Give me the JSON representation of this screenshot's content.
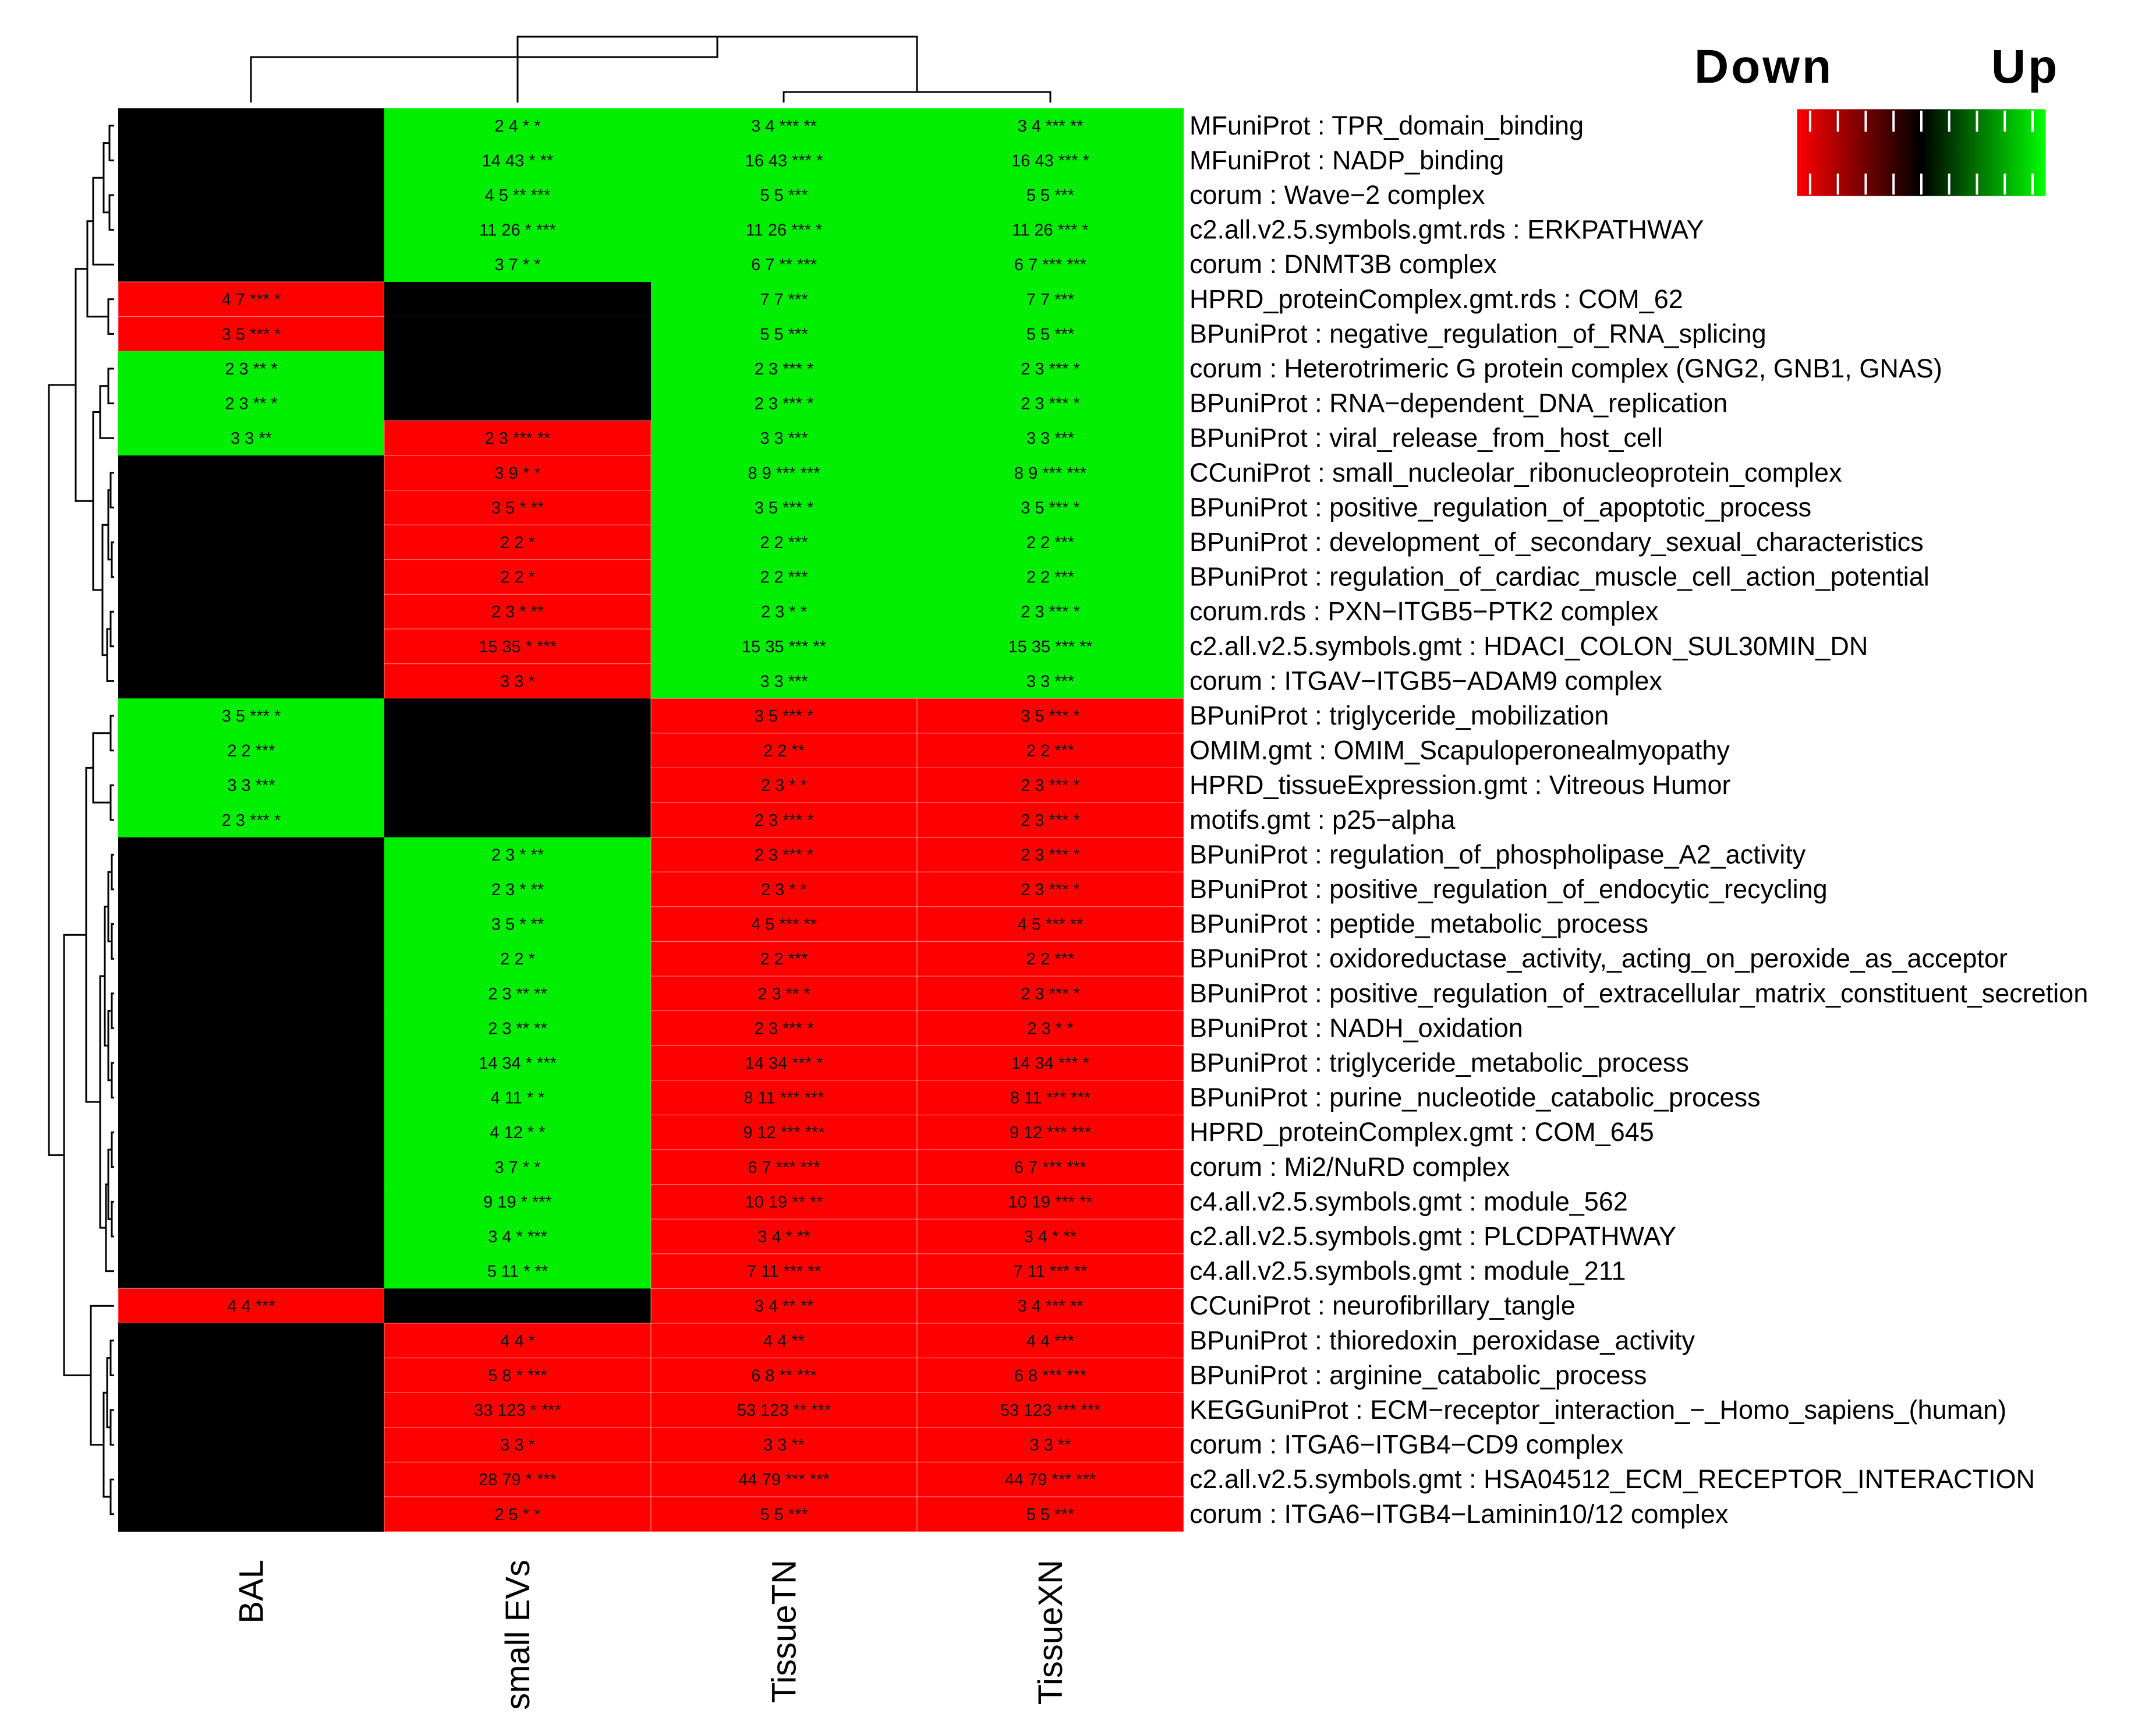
{
  "chart_data": {
    "type": "heatmap",
    "title": "",
    "columns": [
      "BAL",
      "small EVs",
      "TissueTN",
      "TissueXN"
    ],
    "rows": [
      "MFuniProt : TPR_domain_binding",
      "MFuniProt : NADP_binding",
      "corum      : Wave−2 complex",
      "c2.all.v2.5.symbols.gmt.rds : ERKPATHWAY",
      "corum      : DNMT3B complex",
      "HPRD_proteinComplex.gmt.rds : COM_62",
      "BPuniProt : negative_regulation_of_RNA_splicing",
      "corum      : Heterotrimeric G protein complex (GNG2, GNB1, GNAS)",
      "BPuniProt : RNA−dependent_DNA_replication",
      "BPuniProt : viral_release_from_host_cell",
      "CCuniProt : small_nucleolar_ribonucleoprotein_complex",
      "BPuniProt : positive_regulation_of_apoptotic_process",
      "BPuniProt : development_of_secondary_sexual_characteristics",
      "BPuniProt : regulation_of_cardiac_muscle_cell_action_potential",
      "corum.rds : PXN−ITGB5−PTK2 complex",
      "c2.all.v2.5.symbols.gmt       : HDACI_COLON_SUL30MIN_DN",
      "corum      : ITGAV−ITGB5−ADAM9 complex",
      "BPuniProt : triglyceride_mobilization",
      "OMIM.gmt       : OMIM_Scapuloperonealmyopathy",
      "HPRD_tissueExpression.gmt       : Vitreous Humor",
      "motifs.gmt       :  p25−alpha",
      "BPuniProt : regulation_of_phospholipase_A2_activity",
      "BPuniProt : positive_regulation_of_endocytic_recycling",
      "BPuniProt : peptide_metabolic_process",
      "BPuniProt : oxidoreductase_activity,_acting_on_peroxide_as_acceptor",
      "BPuniProt : positive_regulation_of_extracellular_matrix_constituent_secretion",
      "BPuniProt : NADH_oxidation",
      "BPuniProt : triglyceride_metabolic_process",
      "BPuniProt : purine_nucleotide_catabolic_process",
      "HPRD_proteinComplex.gmt       : COM_645",
      "corum      : Mi2/NuRD complex",
      "c4.all.v2.5.symbols.gmt       : module_562",
      "c2.all.v2.5.symbols.gmt       : PLCDPATHWAY",
      "c4.all.v2.5.symbols.gmt       : module_211",
      "CCuniProt : neurofibrillary_tangle",
      "BPuniProt : thioredoxin_peroxidase_activity",
      "BPuniProt : arginine_catabolic_process",
      "KEGGuniProt : ECM−receptor_interaction_−_Homo_sapiens_(human)",
      "corum      : ITGA6−ITGB4−CD9 complex",
      "c2.all.v2.5.symbols.gmt       : HSA04512_ECM_RECEPTOR_INTERACTION",
      "corum      : ITGA6−ITGB4−Laminin10/12 complex"
    ],
    "values": [
      [
        0,
        1,
        1,
        1
      ],
      [
        0,
        1,
        1,
        1
      ],
      [
        0,
        1,
        1,
        1
      ],
      [
        0,
        1,
        1,
        1
      ],
      [
        0,
        1,
        1,
        1
      ],
      [
        -1,
        0,
        1,
        1
      ],
      [
        -1,
        0,
        1,
        1
      ],
      [
        1,
        0,
        1,
        1
      ],
      [
        1,
        0,
        1,
        1
      ],
      [
        1,
        -1,
        1,
        1
      ],
      [
        0,
        -1,
        1,
        1
      ],
      [
        0,
        -1,
        1,
        1
      ],
      [
        0,
        -1,
        1,
        1
      ],
      [
        0,
        -1,
        1,
        1
      ],
      [
        0,
        -1,
        1,
        1
      ],
      [
        0,
        -1,
        1,
        1
      ],
      [
        0,
        -1,
        1,
        1
      ],
      [
        1,
        0,
        -1,
        -1
      ],
      [
        1,
        0,
        -1,
        -1
      ],
      [
        1,
        0,
        -1,
        -1
      ],
      [
        1,
        0,
        -1,
        -1
      ],
      [
        0,
        1,
        -1,
        -1
      ],
      [
        0,
        1,
        -1,
        -1
      ],
      [
        0,
        1,
        -1,
        -1
      ],
      [
        0,
        1,
        -1,
        -1
      ],
      [
        0,
        1,
        -1,
        -1
      ],
      [
        0,
        1,
        -1,
        -1
      ],
      [
        0,
        1,
        -1,
        -1
      ],
      [
        0,
        1,
        -1,
        -1
      ],
      [
        0,
        1,
        -1,
        -1
      ],
      [
        0,
        1,
        -1,
        -1
      ],
      [
        0,
        1,
        -1,
        -1
      ],
      [
        0,
        1,
        -1,
        -1
      ],
      [
        0,
        1,
        -1,
        -1
      ],
      [
        -1,
        0,
        -1,
        -1
      ],
      [
        0,
        -1,
        -1,
        -1
      ],
      [
        0,
        -1,
        -1,
        -1
      ],
      [
        0,
        -1,
        -1,
        -1
      ],
      [
        0,
        -1,
        -1,
        -1
      ],
      [
        0,
        -1,
        -1,
        -1
      ],
      [
        0,
        -1,
        -1,
        -1
      ]
    ],
    "cell_labels": [
      [
        "",
        "2 4 *  *",
        "3 4 *** **",
        "3 4 *** **"
      ],
      [
        "",
        "14 43 * **",
        "16 43 *** *",
        "16 43 *** *"
      ],
      [
        "",
        "4 5 ** ***",
        "5 5 ***",
        "5 5 ***"
      ],
      [
        "",
        "11 26 * ***",
        "11 26 *** *",
        "11 26 *** *"
      ],
      [
        "",
        "3 7 *  *",
        "6 7 ** ***",
        "6 7 *** ***"
      ],
      [
        "4 7 *** *",
        "",
        "7 7 ***",
        "7 7 ***"
      ],
      [
        "3 5 *** *",
        "",
        "5 5 ***",
        "5 5 ***"
      ],
      [
        "2 3 ** *",
        "",
        "2 3 *** *",
        "2 3 *** *"
      ],
      [
        "2 3 ** *",
        "",
        "2 3 *** *",
        "2 3 *** *"
      ],
      [
        "3 3 **",
        "2 3 *** **",
        "3 3 ***",
        "3 3 ***"
      ],
      [
        "",
        "3 9 *  *",
        "8 9 *** ***",
        "8 9 *** ***"
      ],
      [
        "",
        "3 5 *  **",
        "3 5 *** *",
        "3 5 *** *"
      ],
      [
        "",
        "2 2 *",
        "2 2 ***",
        "2 2 ***"
      ],
      [
        "",
        "2 2 *",
        "2 2 ***",
        "2 2 ***"
      ],
      [
        "",
        "2 3 * **",
        "2 3 *  *",
        "2 3 *** *"
      ],
      [
        "",
        "15 35 * ***",
        "15 35 *** **",
        "15 35 *** **"
      ],
      [
        "",
        "3 3 *",
        "3 3 ***",
        "3 3 ***"
      ],
      [
        "3 5 *** *",
        "",
        "3 5 *** *",
        "3 5 *** *"
      ],
      [
        "2 2 ***",
        "",
        "2 2 **",
        "2 2 ***"
      ],
      [
        "3 3 ***",
        "",
        "2 3 *  *",
        "2 3 *** *"
      ],
      [
        "2 3 *** *",
        "",
        "2 3 *** *",
        "2 3 *** *"
      ],
      [
        "",
        "2 3 * **",
        "2 3 *** *",
        "2 3 *** *"
      ],
      [
        "",
        "2 3 * **",
        "2 3 *  *",
        "2 3 *** *"
      ],
      [
        "",
        "3 5 * **",
        "4 5 *** **",
        "4 5 *** **"
      ],
      [
        "",
        "2 2 *",
        "2 2 ***",
        "2 2 ***"
      ],
      [
        "",
        "2 3 ** **",
        "2 3 ** *",
        "2 3 *** *"
      ],
      [
        "",
        "2 3 ** **",
        "2 3 *** *",
        "2 3 *  *"
      ],
      [
        "",
        "14 34 * ***",
        "14 34 *** *",
        "14 34 *** *"
      ],
      [
        "",
        "4 11 *  *",
        "8 11 *** ***",
        "8 11 *** ***"
      ],
      [
        "",
        "4 12 *  *",
        "9 12 *** ***",
        "9 12 *** ***"
      ],
      [
        "",
        "3 7 *  *",
        "6 7 *** ***",
        "6 7 *** ***"
      ],
      [
        "",
        "9 19 * ***",
        "10 19 ** **",
        "10 19 *** **"
      ],
      [
        "",
        "3 4 * ***",
        "3 4 *  **",
        "3 4 *  **"
      ],
      [
        "",
        "5 11 * **",
        "7 11 *** **",
        "7 11 *** **"
      ],
      [
        "4 4 ***",
        "",
        "3 4 ** **",
        "3 4 *** **"
      ],
      [
        "",
        "4 4 *",
        "4 4 **",
        "4 4 ***"
      ],
      [
        "",
        "5 8 * ***",
        "6 8 ** ***",
        "6 8 *** ***"
      ],
      [
        "",
        "33 123 * ***",
        "53 123 ** ***",
        "53 123 *** ***"
      ],
      [
        "",
        "3 3 *",
        "3 3 **",
        "3 3 **"
      ],
      [
        "",
        "28 79 * ***",
        "44 79 *** ***",
        "44 79 *** ***"
      ],
      [
        "",
        "2 5 *  *",
        "5 5 ***",
        "5 5 ***"
      ]
    ],
    "legend": {
      "low_label": "Down",
      "high_label": "Up",
      "colors": [
        "#ff0000",
        "#000000",
        "#00ff00"
      ],
      "placement": "top-right"
    },
    "colors": {
      "up": "#00ee00",
      "down": "#ff0000",
      "none": "#000000"
    }
  }
}
